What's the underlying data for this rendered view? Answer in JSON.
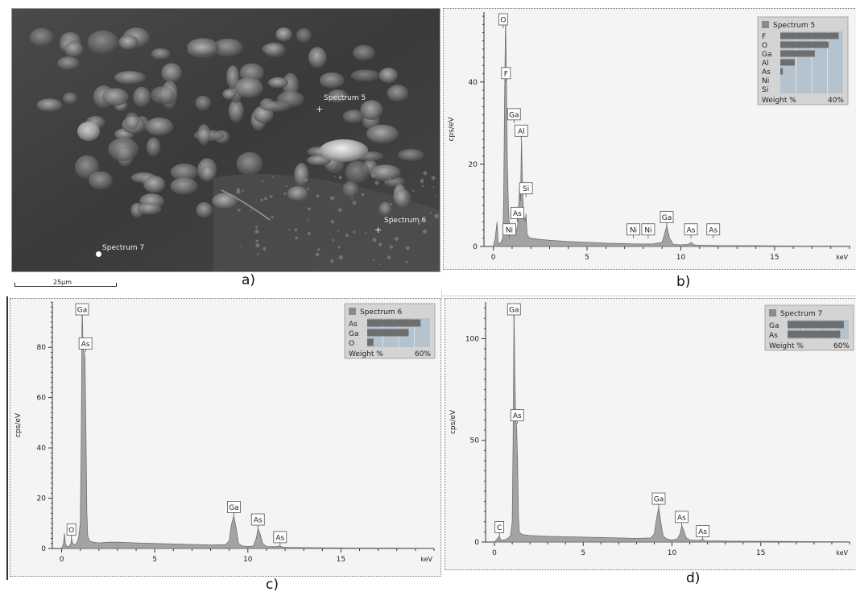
{
  "panels": {
    "a": {
      "caption": "a)",
      "scale_bar": "25µm",
      "labels": [
        {
          "text": "Spectrum 5"
        },
        {
          "text": "Spectrum 6"
        },
        {
          "text": "Spectrum 7"
        }
      ]
    },
    "b": {
      "caption": "b)"
    },
    "c": {
      "caption": "c)"
    },
    "d": {
      "caption": "d)"
    }
  },
  "chart_data": [
    {
      "id": "b",
      "type": "line",
      "ylabel": "cps/eV",
      "xunit": "keV",
      "xlim": [
        -0.5,
        19
      ],
      "ylim": [
        0,
        57
      ],
      "xticks": [
        0,
        5,
        10,
        15
      ],
      "yticks": [
        0,
        20,
        40
      ],
      "series": [
        {
          "x": [
            0.0,
            0.1,
            0.2,
            0.25,
            0.3,
            0.4,
            0.5,
            0.55,
            0.6,
            0.65,
            0.7,
            0.75,
            0.8,
            0.85,
            0.9,
            0.95,
            1.0,
            1.1,
            1.2,
            1.3,
            1.4,
            1.45,
            1.5,
            1.55,
            1.6,
            1.7,
            1.74,
            1.8,
            1.9,
            2.0,
            2.5,
            3.0,
            4.0,
            5.0,
            6.0,
            7.0,
            7.5,
            8.0,
            8.5,
            9.0,
            9.1,
            9.25,
            9.4,
            9.6,
            10.0,
            10.4,
            10.55,
            10.7,
            11.0,
            12.0,
            14.0,
            16.0,
            18.0,
            19.0
          ],
          "y": [
            0,
            2,
            6,
            1,
            0.5,
            1,
            2,
            10,
            35,
            56,
            40,
            20,
            10,
            6,
            4,
            3.5,
            3,
            3,
            3.5,
            5,
            14,
            11,
            26,
            16,
            8,
            6,
            8,
            3,
            2.2,
            2,
            1.7,
            1.5,
            1.2,
            1.0,
            0.8,
            0.7,
            0.6,
            0.6,
            0.6,
            1,
            2.5,
            5,
            2,
            0.5,
            0.4,
            0.5,
            1,
            0.4,
            0.3,
            0.2,
            0.2,
            0.1,
            0.1,
            0.1
          ]
        }
      ],
      "peak_labels": [
        {
          "text": "O",
          "x": 0.525,
          "y": 56
        },
        {
          "text": "F",
          "x": 0.677,
          "y": 40
        },
        {
          "text": "Ga",
          "x": 1.1,
          "y": 30
        },
        {
          "text": "Al",
          "x": 1.49,
          "y": 26
        },
        {
          "text": "Si",
          "x": 1.74,
          "y": 12
        },
        {
          "text": "As",
          "x": 1.28,
          "y": 6
        },
        {
          "text": "Ni",
          "x": 0.85,
          "y": 2
        },
        {
          "text": "Ni",
          "x": 7.47,
          "y": 2
        },
        {
          "text": "Ni",
          "x": 8.26,
          "y": 2
        },
        {
          "text": "Ga",
          "x": 9.25,
          "y": 5
        },
        {
          "text": "As",
          "x": 10.54,
          "y": 2
        },
        {
          "text": "As",
          "x": 11.73,
          "y": 2
        }
      ],
      "legend": {
        "title": "Spectrum 5",
        "items": [
          {
            "label": "F",
            "value": 0.93
          },
          {
            "label": "O",
            "value": 0.77
          },
          {
            "label": "Ga",
            "value": 0.55
          },
          {
            "label": "Al",
            "value": 0.23
          },
          {
            "label": "As",
            "value": 0.04
          },
          {
            "label": "Ni",
            "value": 0.0
          },
          {
            "label": "Si",
            "value": 0.0
          }
        ],
        "footer_left": "Weight %",
        "footer_right": "40%"
      }
    },
    {
      "id": "c",
      "type": "line",
      "ylabel": "cps/eV",
      "xunit": "keV",
      "xlim": [
        -0.5,
        20
      ],
      "ylim": [
        0,
        98
      ],
      "xticks": [
        0,
        5,
        10,
        15
      ],
      "yticks": [
        0,
        20,
        40,
        60,
        80
      ],
      "series": [
        {
          "x": [
            0.0,
            0.1,
            0.15,
            0.2,
            0.3,
            0.4,
            0.5,
            0.525,
            0.6,
            0.7,
            0.8,
            0.9,
            1.0,
            1.05,
            1.1,
            1.15,
            1.2,
            1.25,
            1.3,
            1.35,
            1.4,
            1.5,
            1.7,
            2.0,
            2.5,
            3.0,
            4.0,
            5.0,
            6.0,
            7.0,
            8.0,
            8.8,
            9.0,
            9.1,
            9.25,
            9.4,
            9.5,
            9.7,
            10.0,
            10.3,
            10.45,
            10.55,
            10.65,
            10.8,
            11.0,
            11.5,
            11.7,
            11.9,
            12.5,
            14.0,
            16.0,
            18.0,
            20.0
          ],
          "y": [
            0,
            2,
            6,
            2,
            0.5,
            1,
            2,
            4,
            2,
            1.5,
            2,
            4,
            10,
            40,
            96,
            80,
            78,
            76,
            50,
            15,
            5,
            3,
            2.5,
            2.2,
            2.5,
            2.5,
            2.2,
            2.0,
            1.8,
            1.6,
            1.4,
            1.5,
            3,
            9,
            13,
            7,
            2,
            1,
            0.8,
            1,
            4,
            8,
            6,
            2,
            0.8,
            0.7,
            1,
            0.5,
            0.4,
            0.3,
            0.2,
            0.2,
            0.1
          ]
        }
      ],
      "peak_labels": [
        {
          "text": "Ga",
          "x": 1.1,
          "y": 96
        },
        {
          "text": "As",
          "x": 1.28,
          "y": 78
        },
        {
          "text": "O",
          "x": 0.525,
          "y": 4
        },
        {
          "text": "Ga",
          "x": 9.25,
          "y": 13
        },
        {
          "text": "As",
          "x": 10.54,
          "y": 8
        },
        {
          "text": "As",
          "x": 11.73,
          "y": 1
        }
      ],
      "legend": {
        "title": "Spectrum 6",
        "items": [
          {
            "label": "As",
            "value": 0.85
          },
          {
            "label": "Ga",
            "value": 0.66
          },
          {
            "label": "O",
            "value": 0.1
          }
        ],
        "footer_left": "Weight %",
        "footer_right": "60%"
      }
    },
    {
      "id": "d",
      "type": "line",
      "ylabel": "cps/eV",
      "xunit": "keV",
      "xlim": [
        -0.5,
        20
      ],
      "ylim": [
        0,
        118
      ],
      "xticks": [
        0,
        5,
        10,
        15
      ],
      "yticks": [
        0,
        50,
        100
      ],
      "series": [
        {
          "x": [
            0.0,
            0.1,
            0.2,
            0.277,
            0.35,
            0.5,
            0.7,
            0.9,
            1.0,
            1.05,
            1.1,
            1.15,
            1.2,
            1.25,
            1.3,
            1.35,
            1.4,
            1.5,
            1.7,
            2.0,
            2.5,
            3.0,
            4.0,
            5.0,
            6.0,
            7.0,
            8.0,
            8.8,
            9.0,
            9.1,
            9.25,
            9.4,
            9.5,
            9.7,
            10.0,
            10.3,
            10.45,
            10.55,
            10.65,
            10.8,
            11.0,
            11.5,
            11.7,
            11.9,
            12.5,
            14.0,
            16.0,
            18.0,
            20.0
          ],
          "y": [
            0,
            1,
            2,
            3,
            1,
            1,
            1.5,
            3,
            10,
            50,
            116,
            80,
            60,
            56,
            40,
            12,
            5,
            4,
            3.5,
            3.2,
            3,
            2.8,
            2.6,
            2.4,
            2.2,
            2.0,
            1.8,
            2,
            4,
            10,
            17,
            8,
            3,
            1.5,
            1,
            1.5,
            4,
            8,
            6,
            2,
            1,
            0.8,
            1.2,
            0.6,
            0.5,
            0.4,
            0.3,
            0.2,
            0.1
          ]
        }
      ],
      "peak_labels": [
        {
          "text": "Ga",
          "x": 1.1,
          "y": 116
        },
        {
          "text": "As",
          "x": 1.28,
          "y": 58
        },
        {
          "text": "C",
          "x": 0.277,
          "y": 3
        },
        {
          "text": "Ga",
          "x": 9.25,
          "y": 17
        },
        {
          "text": "As",
          "x": 10.54,
          "y": 8
        },
        {
          "text": "As",
          "x": 11.73,
          "y": 1
        }
      ],
      "legend": {
        "title": "Spectrum 7",
        "items": [
          {
            "label": "Ga",
            "value": 0.92
          },
          {
            "label": "As",
            "value": 0.86
          }
        ],
        "footer_left": "Weight %",
        "footer_right": "60%"
      }
    }
  ]
}
